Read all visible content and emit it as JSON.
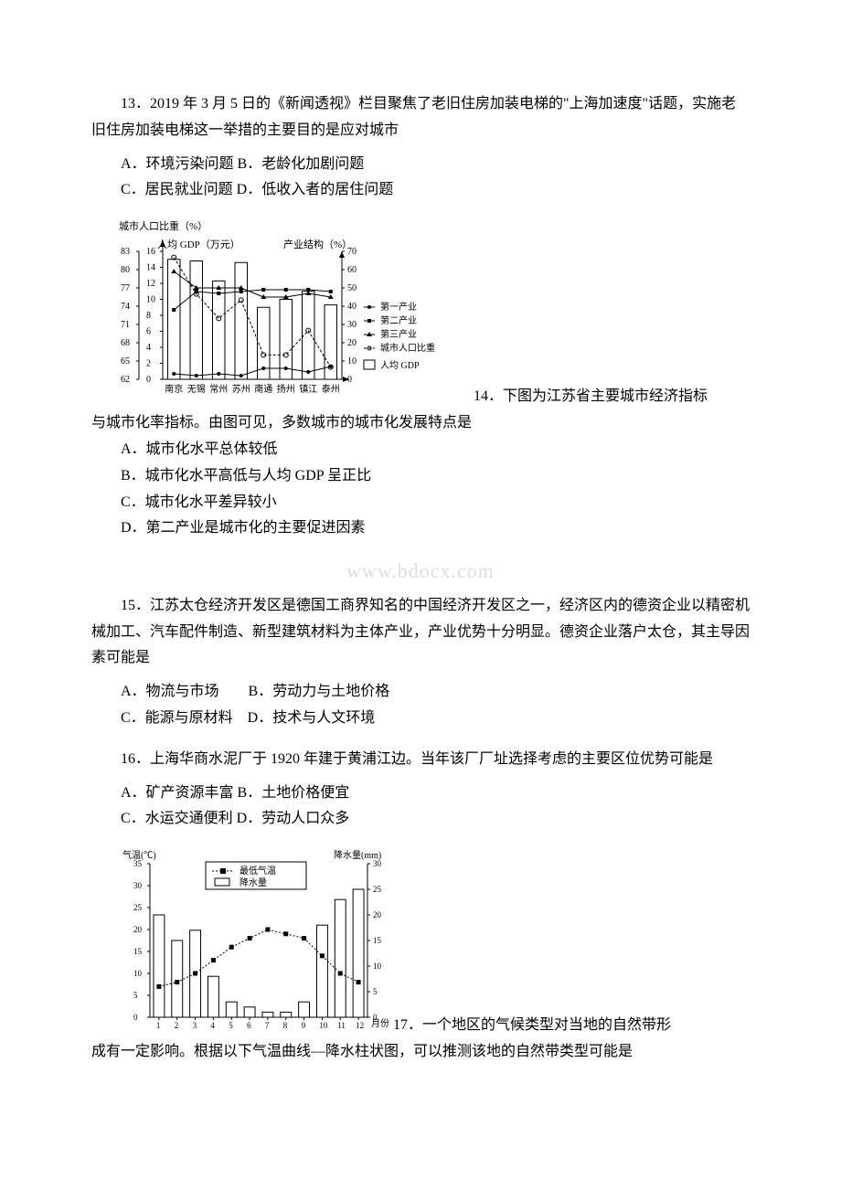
{
  "q13": {
    "text": "13．2019 年 3 月 5 日的《新闻透视》栏目聚焦了老旧住房加装电梯的\"上海加速度\"话题，实施老旧住房加装电梯这一举措的主要目的是应对城市",
    "optAB": "A．环境污染问题 B．老龄化加剧问题",
    "optCD": "C．居民就业问题 D．低收入者的居住问题"
  },
  "chart1": {
    "title_left": "城市人口比重（%）",
    "sub_left": "人均 GDP（万元）",
    "sub_right": "产业结构（%）",
    "y1_ticks": [
      "83",
      "80",
      "77",
      "74",
      "71",
      "68",
      "65",
      "62"
    ],
    "y2_ticks": [
      "16",
      "14",
      "12",
      "10",
      "8",
      "6",
      "4",
      "2",
      "0"
    ],
    "y3_ticks": [
      "70",
      "60",
      "50",
      "40",
      "30",
      "20",
      "10",
      "0"
    ],
    "x_cats": [
      "南京",
      "无锡",
      "常州",
      "苏州",
      "南通",
      "扬州",
      "镇江",
      "泰州"
    ],
    "legend": {
      "primary": "第一产业",
      "secondary": "第二产业",
      "tertiary": "第三产业",
      "urban": "城市人口比重",
      "gdp": "人均 GDP"
    },
    "colors": {
      "bar_fill": "#ffffff",
      "bar_stroke": "#000000",
      "axis": "#000000",
      "line_primary": "#000000",
      "line_secondary": "#000000",
      "line_tertiary": "#000000",
      "line_urban": "#000000"
    },
    "gdp_bars": [
      15.0,
      14.8,
      12.3,
      14.6,
      9.0,
      10.0,
      11.0,
      9.3
    ],
    "primary_line": [
      3,
      2,
      3,
      2,
      6,
      6,
      4,
      7
    ],
    "secondary_line": [
      38,
      48,
      47,
      48,
      49,
      49,
      49,
      48
    ],
    "tertiary_line": [
      59,
      50,
      50,
      50,
      45,
      45,
      47,
      45
    ],
    "urban_line": [
      82,
      76,
      72,
      75,
      66,
      66,
      70,
      64
    ]
  },
  "q14": {
    "prefix": "14．下图为江苏省主要城市经济指标",
    "text2": "与城市化率指标。由图可见，多数城市的城市化发展特点是",
    "optA": "A．城市化水平总体较低",
    "optB": "B．城市化水平高低与人均 GDP 呈正比",
    "optC": "C．城市化水平差异较小",
    "optD": "D．第二产业是城市化的主要促进因素"
  },
  "watermark": "www.bdocx.com",
  "q15": {
    "text": "15．江苏太仓经济开发区是德国工商界知名的中国经济开发区之一，经济区内的德资企业以精密机械加工、汽车配件制造、新型建筑材料为主体产业，产业优势十分明显。德资企业落户太仓，其主导因素可能是",
    "optAB": "A．物流与市场　　B．劳动力与土地价格",
    "optCD": "C．能源与原材料　D．技术与人文环境"
  },
  "q16": {
    "text": "16．上海华商水泥厂于 1920 年建于黄浦江边。当年该厂厂址选择考虑的主要区位优势可能是",
    "optAB": "A．矿产资源丰富 B．土地价格便宜",
    "optCD": "C．水运交通便利 D．劳动人口众多"
  },
  "chart2": {
    "y_left_label": "气温(℃)",
    "y_right_label": "降水量(mm)",
    "legend_temp": "最低气温",
    "legend_rain": "降水量",
    "y_left_ticks": [
      "35",
      "30",
      "25",
      "20",
      "15",
      "10",
      "5",
      "0"
    ],
    "y_right_ticks": [
      "30",
      "25",
      "20",
      "15",
      "10",
      "5",
      "0"
    ],
    "x_ticks": [
      "1",
      "2",
      "3",
      "4",
      "5",
      "6",
      "7",
      "8",
      "9",
      "10",
      "11",
      "12"
    ],
    "x_label": "月份",
    "temp_values": [
      7,
      8,
      10,
      13,
      16,
      18,
      20,
      19,
      18,
      14,
      10,
      8
    ],
    "rain_values": [
      20,
      15,
      17,
      8,
      3,
      2,
      1,
      1,
      3,
      18,
      23,
      25
    ],
    "colors": {
      "bar_stroke": "#000",
      "bar_fill": "#fff",
      "line": "#000",
      "axis": "#000"
    }
  },
  "q17": {
    "prefix": "17．一个地区的气候类型对当地的自然带形",
    "text2": "成有一定影响。根据以下气温曲线—降水柱状图，可以推测该地的自然带类型可能是"
  }
}
